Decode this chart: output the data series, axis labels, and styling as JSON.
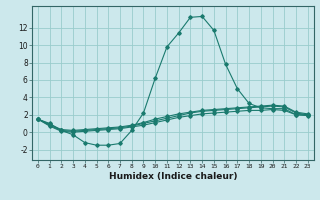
{
  "xlabel": "Humidex (Indice chaleur)",
  "ylabel": "",
  "background_color": "#cce8ec",
  "grid_color": "#99cccc",
  "line_color": "#1a7a6e",
  "xlim": [
    -0.5,
    23.5
  ],
  "ylim": [
    -3.2,
    14.5
  ],
  "x_ticks": [
    0,
    1,
    2,
    3,
    4,
    5,
    6,
    7,
    8,
    9,
    10,
    11,
    12,
    13,
    14,
    15,
    16,
    17,
    18,
    19,
    20,
    21,
    22,
    23
  ],
  "y_ticks": [
    -2,
    0,
    2,
    4,
    6,
    8,
    10,
    12
  ],
  "series": [
    {
      "x": [
        0,
        1,
        2,
        3,
        4,
        5,
        6,
        7,
        8,
        9,
        10,
        11,
        12,
        13,
        14,
        15,
        16,
        17,
        18,
        19,
        20,
        21,
        22,
        23
      ],
      "y": [
        1.5,
        1.0,
        0.2,
        -0.3,
        -1.2,
        -1.5,
        -1.5,
        -1.3,
        0.2,
        2.2,
        6.2,
        9.8,
        11.4,
        13.2,
        13.3,
        11.7,
        7.8,
        5.0,
        3.3,
        2.8,
        2.7,
        2.7,
        2.0,
        2.0
      ]
    },
    {
      "x": [
        0,
        1,
        2,
        3,
        4,
        5,
        6,
        7,
        8,
        9,
        10,
        11,
        12,
        13,
        14,
        15,
        16,
        17,
        18,
        19,
        20,
        21,
        22,
        23
      ],
      "y": [
        1.5,
        0.8,
        0.2,
        0.1,
        0.2,
        0.3,
        0.4,
        0.5,
        0.7,
        1.0,
        1.3,
        1.6,
        1.9,
        2.2,
        2.4,
        2.5,
        2.6,
        2.7,
        2.8,
        2.9,
        3.0,
        2.9,
        2.2,
        2.0
      ]
    },
    {
      "x": [
        0,
        1,
        2,
        3,
        4,
        5,
        6,
        7,
        8,
        9,
        10,
        11,
        12,
        13,
        14,
        15,
        16,
        17,
        18,
        19,
        20,
        21,
        22,
        23
      ],
      "y": [
        1.5,
        0.7,
        0.1,
        0.0,
        0.1,
        0.2,
        0.3,
        0.4,
        0.6,
        0.8,
        1.1,
        1.4,
        1.7,
        1.9,
        2.1,
        2.2,
        2.3,
        2.4,
        2.5,
        2.5,
        2.6,
        2.5,
        2.0,
        1.9
      ]
    },
    {
      "x": [
        0,
        1,
        2,
        3,
        4,
        5,
        6,
        7,
        8,
        9,
        10,
        11,
        12,
        13,
        14,
        15,
        16,
        17,
        18,
        19,
        20,
        21,
        22,
        23
      ],
      "y": [
        1.5,
        0.9,
        0.3,
        0.2,
        0.3,
        0.4,
        0.5,
        0.6,
        0.8,
        1.1,
        1.5,
        1.8,
        2.1,
        2.3,
        2.5,
        2.6,
        2.7,
        2.8,
        2.9,
        3.0,
        3.1,
        3.0,
        2.3,
        2.1
      ]
    }
  ]
}
